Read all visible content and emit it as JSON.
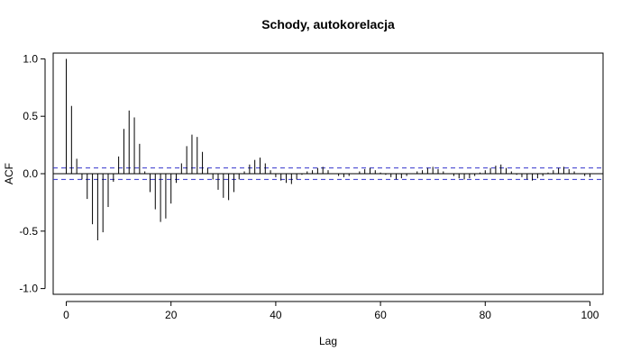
{
  "chart_data": {
    "type": "bar",
    "title": "Schody, autokorelacja",
    "xlabel": "Lag",
    "ylabel": "ACF",
    "xlim": [
      -2.5,
      102.5
    ],
    "ylim": [
      -1.05,
      1.05
    ],
    "x_ticks": [
      0,
      20,
      40,
      60,
      80,
      100
    ],
    "x_tick_labels": [
      "0",
      "20",
      "40",
      "60",
      "80",
      "100"
    ],
    "y_ticks": [
      -1.0,
      -0.5,
      0.0,
      0.5,
      1.0
    ],
    "y_tick_labels": [
      "-1.0",
      "-0.5",
      "0.0",
      "0.5",
      "1.0"
    ],
    "zero_line": 0,
    "confidence_band": 0.05,
    "lags": [
      0,
      1,
      2,
      3,
      4,
      5,
      6,
      7,
      8,
      9,
      10,
      11,
      12,
      13,
      14,
      15,
      16,
      17,
      18,
      19,
      20,
      21,
      22,
      23,
      24,
      25,
      26,
      27,
      28,
      29,
      30,
      31,
      32,
      33,
      34,
      35,
      36,
      37,
      38,
      39,
      40,
      41,
      42,
      43,
      44,
      45,
      46,
      47,
      48,
      49,
      50,
      51,
      52,
      53,
      54,
      55,
      56,
      57,
      58,
      59,
      60,
      61,
      62,
      63,
      64,
      65,
      66,
      67,
      68,
      69,
      70,
      71,
      72,
      73,
      74,
      75,
      76,
      77,
      78,
      79,
      80,
      81,
      82,
      83,
      84,
      85,
      86,
      87,
      88,
      89,
      90,
      91,
      92,
      93,
      94,
      95,
      96,
      97,
      98,
      99,
      100
    ],
    "acf": [
      1.0,
      0.59,
      0.13,
      -0.05,
      -0.22,
      -0.44,
      -0.58,
      -0.51,
      -0.29,
      -0.07,
      0.15,
      0.39,
      0.55,
      0.49,
      0.26,
      0.02,
      -0.16,
      -0.31,
      -0.42,
      -0.39,
      -0.26,
      -0.08,
      0.09,
      0.24,
      0.34,
      0.32,
      0.19,
      0.05,
      -0.05,
      -0.14,
      -0.21,
      -0.23,
      -0.16,
      -0.05,
      0.02,
      0.08,
      0.12,
      0.14,
      0.09,
      0.03,
      -0.03,
      -0.06,
      -0.08,
      -0.09,
      -0.05,
      -0.01,
      0.02,
      0.03,
      0.05,
      0.06,
      0.03,
      0.0,
      -0.02,
      -0.03,
      -0.02,
      0.0,
      0.02,
      0.04,
      0.05,
      0.03,
      0.01,
      -0.01,
      -0.03,
      -0.05,
      -0.04,
      -0.02,
      0.0,
      0.02,
      0.03,
      0.05,
      0.06,
      0.04,
      0.02,
      0.0,
      -0.02,
      -0.04,
      -0.05,
      -0.04,
      -0.02,
      0.01,
      0.03,
      0.05,
      0.07,
      0.08,
      0.05,
      0.02,
      -0.01,
      -0.03,
      -0.05,
      -0.06,
      -0.04,
      -0.02,
      0.01,
      0.03,
      0.05,
      0.06,
      0.04,
      0.02,
      0.0,
      -0.02,
      -0.03
    ],
    "colors": {
      "bars": "#000000",
      "zero_line": "#000000",
      "confidence_band": "#3333cc",
      "frame": "#000000"
    },
    "grid": false
  }
}
